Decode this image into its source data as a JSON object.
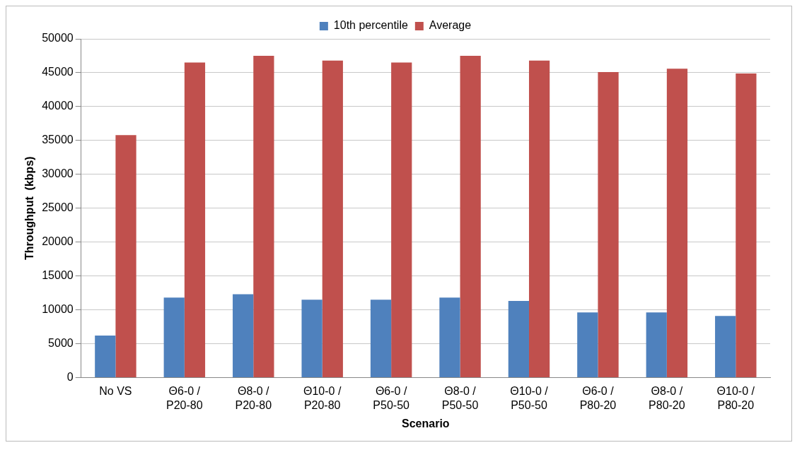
{
  "chart_data": {
    "type": "bar",
    "xlabel": "Scenario",
    "ylabel": "Throughput  (kbps)",
    "categories": [
      "No VS",
      "Θ6-0 /\nP20-80",
      "Θ8-0 /\nP20-80",
      "Θ10-0 /\nP20-80",
      "Θ6-0 /\nP50-50",
      "Θ8-0 /\nP50-50",
      "Θ10-0 /\nP50-50",
      "Θ6-0 /\nP80-20",
      "Θ8-0 /\nP80-20",
      "Θ10-0 /\nP80-20"
    ],
    "series": [
      {
        "name": "10th percentile",
        "color": "#4f81bd",
        "values": [
          6200,
          11800,
          12300,
          11500,
          11500,
          11800,
          11300,
          9600,
          9600,
          9100
        ]
      },
      {
        "name": "Average",
        "color": "#c0504d",
        "values": [
          35800,
          46500,
          47500,
          46800,
          46500,
          47500,
          46800,
          45100,
          45600,
          44900
        ]
      }
    ],
    "ylim": [
      0,
      50000
    ],
    "yticks": [
      0,
      5000,
      10000,
      15000,
      20000,
      25000,
      30000,
      35000,
      40000,
      45000,
      50000
    ],
    "grid": "y",
    "legend": "top"
  }
}
